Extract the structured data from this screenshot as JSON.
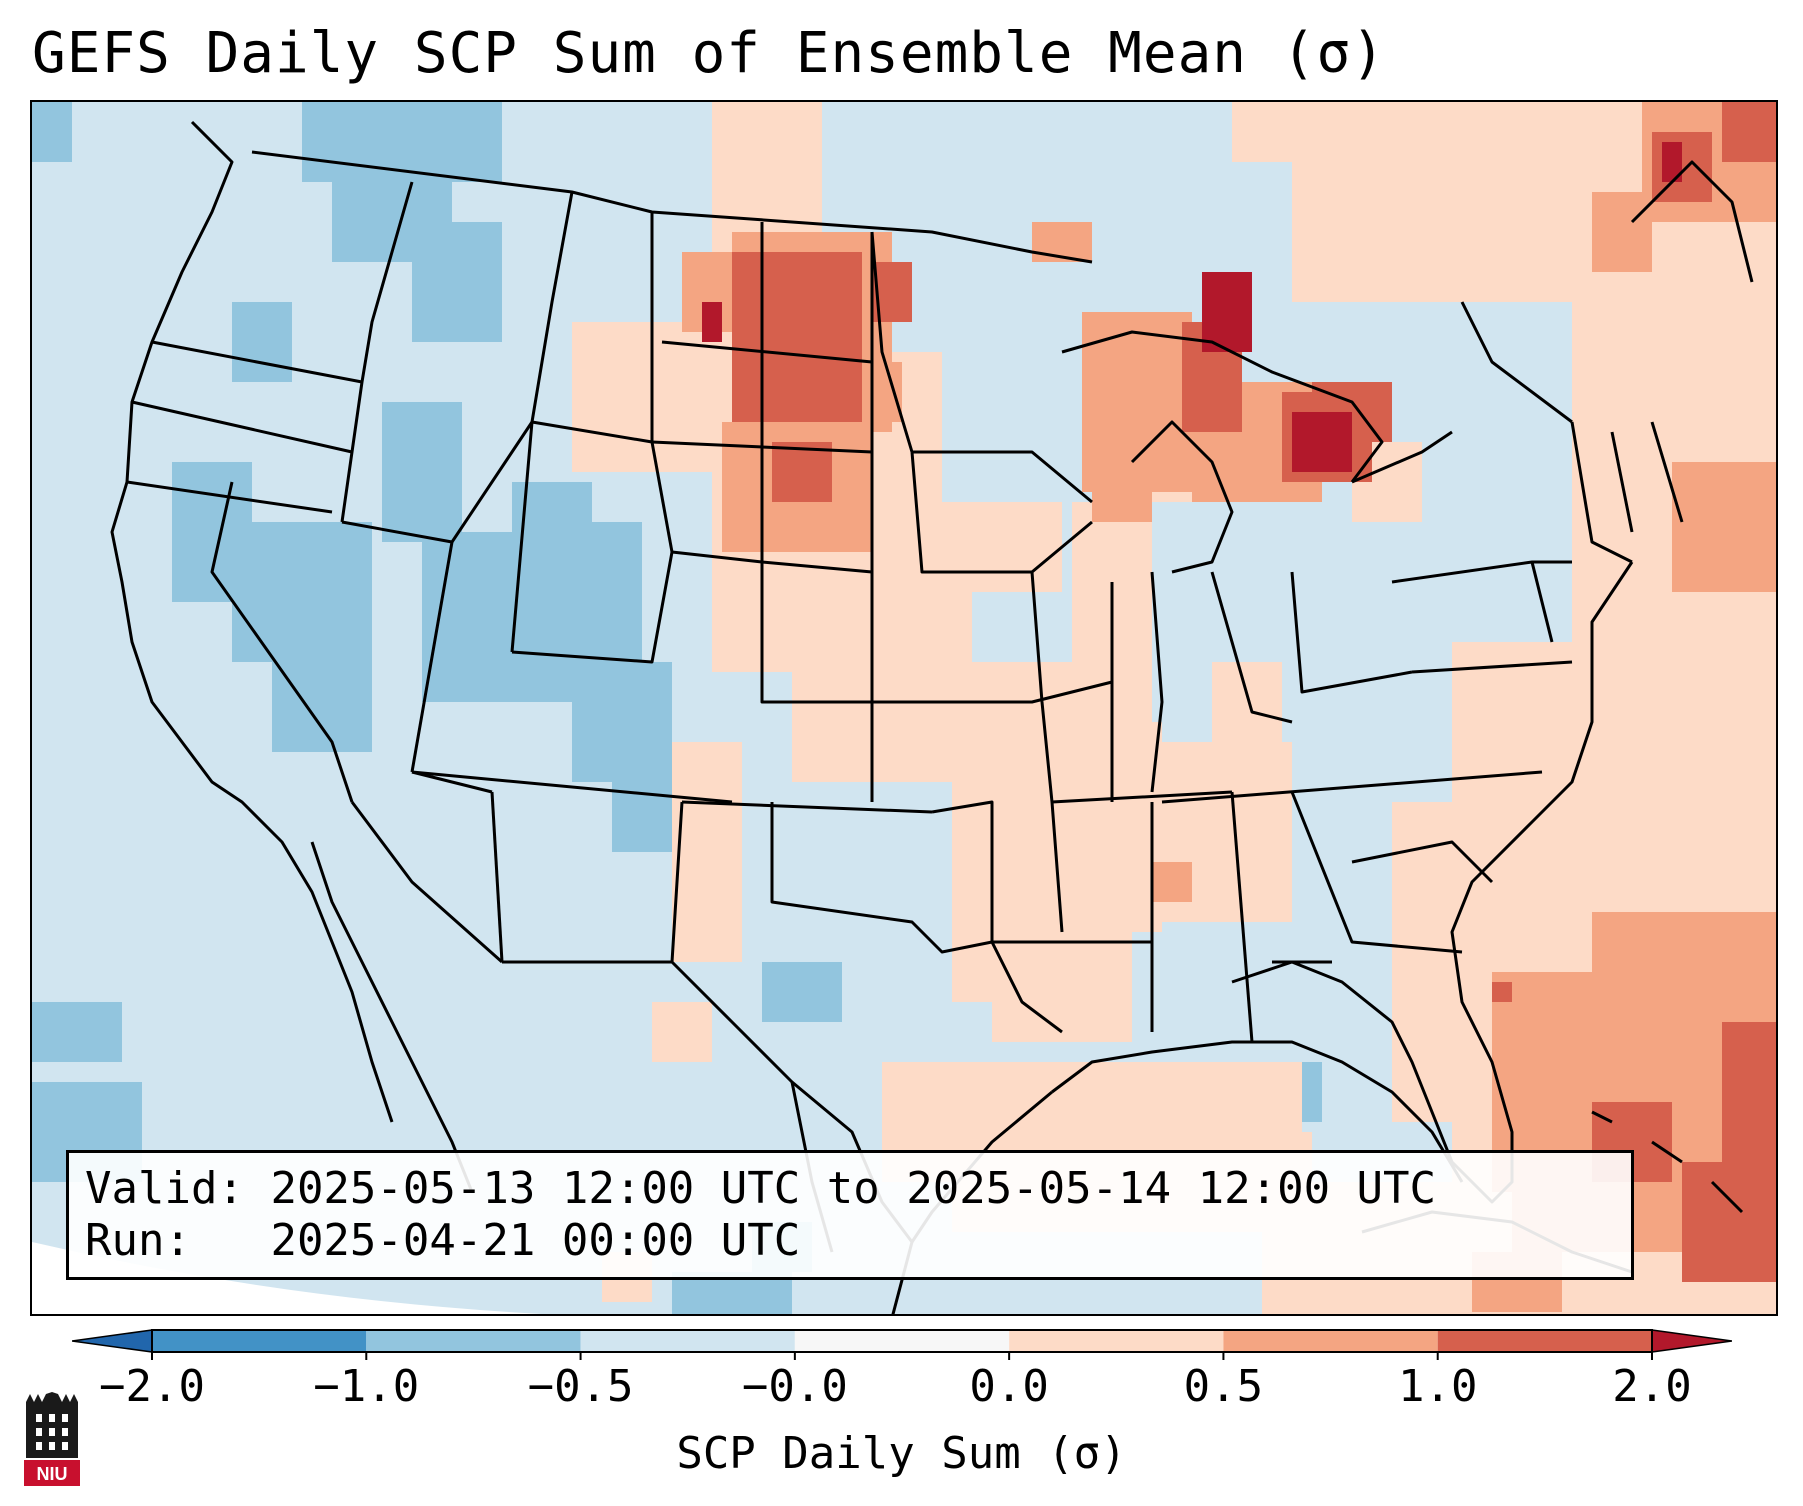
{
  "title": "GEFS Daily SCP Sum of Ensemble Mean (σ)",
  "info_box": {
    "valid_label": "Valid:",
    "valid_value": "2025-05-13 12:00 UTC to 2025-05-14 12:00 UTC",
    "run_label": "Run:",
    "run_value": "2025-04-21 00:00 UTC"
  },
  "colorbar": {
    "label": "SCP Daily Sum (σ)",
    "ticks": [
      "−2.0",
      "−1.0",
      "−0.5",
      "−0.0",
      "0.0",
      "0.5",
      "1.0",
      "2.0"
    ],
    "colors": [
      "#4292c6",
      "#92c5de",
      "#d1e5f0",
      "#f7f7f7",
      "#fddbc7",
      "#f4a582",
      "#d6604d"
    ],
    "under_color": "#2166ac",
    "over_color": "#b2182b"
  },
  "logo": {
    "text": "NIU"
  }
}
